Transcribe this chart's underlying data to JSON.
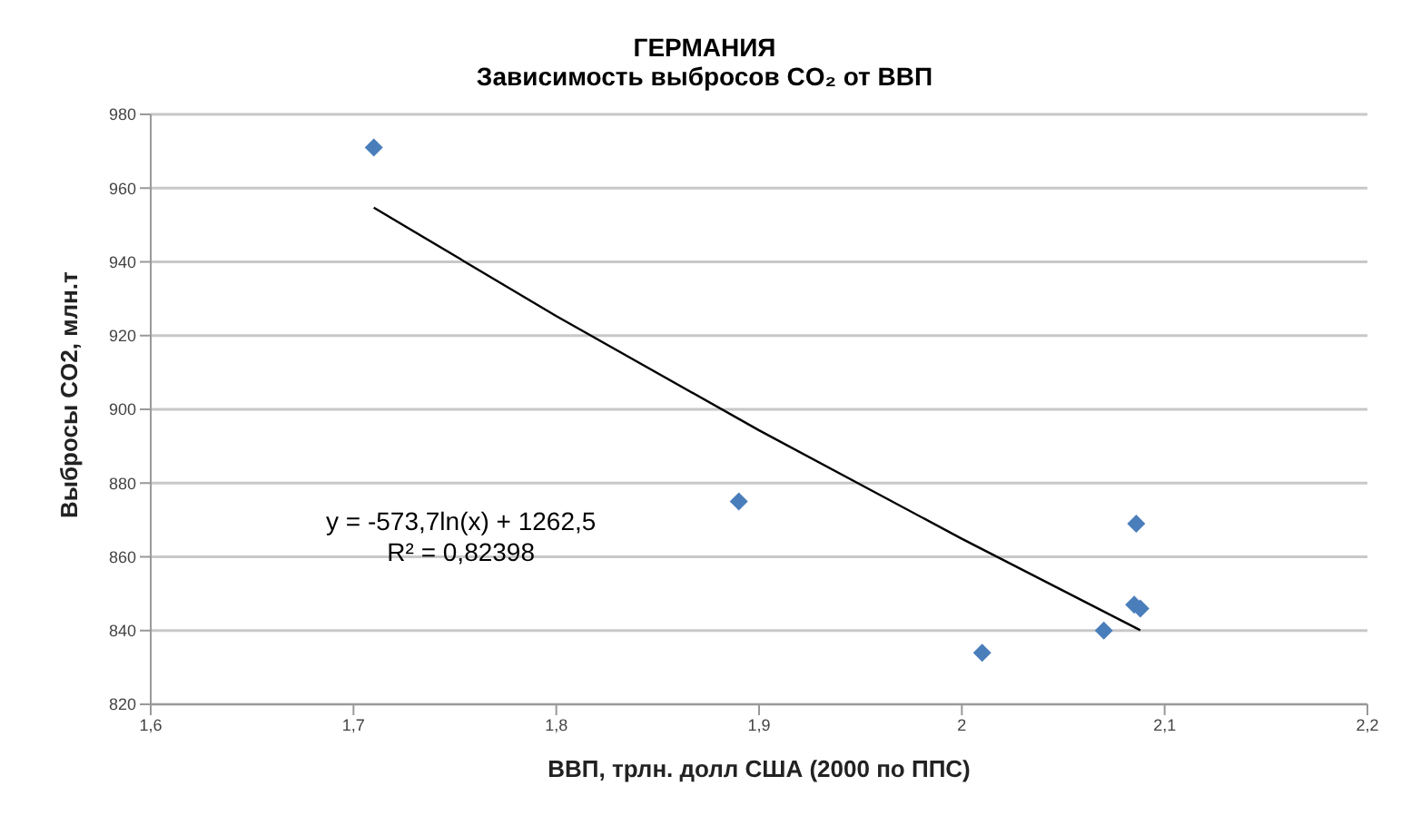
{
  "chart_data": {
    "type": "scatter",
    "title": "ГЕРМАНИЯ",
    "subtitle": "Зависимость выбросов CO₂ от ВВП",
    "xlabel": "ВВП, трлн. долл США (2000 по ППС)",
    "ylabel": "Выбросы CO2, млн.т",
    "series": [
      {
        "type": "scatter",
        "color": "#4a7ebb",
        "x": [
          1.71,
          1.89,
          2.01,
          2.07,
          2.085,
          2.088,
          2.086
        ],
        "values": [
          971,
          875,
          834,
          840,
          847,
          846,
          869
        ],
        "marker": "diamond"
      },
      {
        "type": "line",
        "color": "#000000",
        "x": [
          1.71,
          1.8,
          1.9,
          2.0,
          2.088
        ],
        "values": [
          954.7,
          925.3,
          894.3,
          864.9,
          840.1
        ],
        "marker": "none",
        "line_style": "solid"
      }
    ],
    "xlim": [
      1.6,
      2.2
    ],
    "xticks": [
      {
        "value": 1.6,
        "label": "1,6"
      },
      {
        "value": 1.7,
        "label": "1,7"
      },
      {
        "value": 1.8,
        "label": "1,8"
      },
      {
        "value": 1.9,
        "label": "1,9"
      },
      2,
      {
        "value": 2.1,
        "label": "2,1"
      },
      {
        "value": 2.2,
        "label": "2,2"
      }
    ],
    "ylim": [
      820,
      980
    ],
    "yticks": [
      820,
      840,
      860,
      880,
      900,
      920,
      940,
      960,
      980
    ],
    "grid": "y",
    "legend": false,
    "annotations": [
      "y = -573,7ln(x) + 1262,5",
      "R² = 0,82398"
    ]
  }
}
